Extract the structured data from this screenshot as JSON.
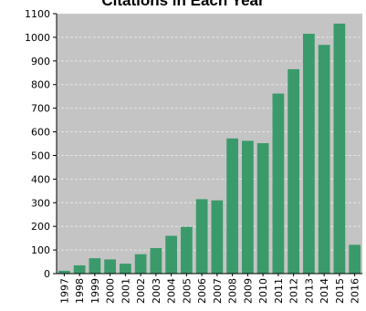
{
  "chart_data": {
    "type": "bar",
    "title": "Citations in Each Year",
    "xlabel": "",
    "ylabel": "",
    "ylim": [
      0,
      1100
    ],
    "yticks": [
      0,
      100,
      200,
      300,
      400,
      500,
      600,
      700,
      800,
      900,
      1000,
      1100
    ],
    "grid": "horizontal dashed",
    "categories": [
      "1997",
      "1998",
      "1999",
      "2000",
      "2001",
      "2002",
      "2003",
      "2004",
      "2005",
      "2006",
      "2007",
      "2008",
      "2009",
      "2010",
      "2011",
      "2012",
      "2013",
      "2014",
      "2015",
      "2016"
    ],
    "values": [
      12,
      35,
      65,
      60,
      42,
      82,
      108,
      160,
      198,
      315,
      310,
      572,
      562,
      552,
      762,
      865,
      1015,
      968,
      1058,
      122
    ],
    "colors": {
      "bar": "#3b9a6b",
      "plot_background": "#c4c4c4",
      "grid": "#e4e4e4",
      "axis": "#000000"
    }
  }
}
